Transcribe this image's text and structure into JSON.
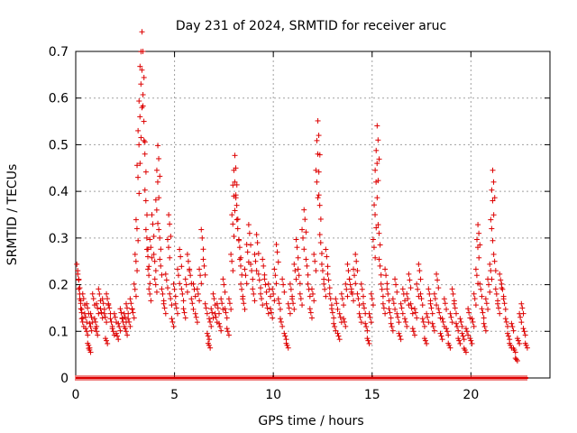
{
  "chart_data": {
    "type": "scatter",
    "title": "Day 231 of 2024, SRMTID for receiver aruc",
    "xlabel": "GPS time / hours",
    "ylabel": "SRMTID / TECUs",
    "xlim": [
      0,
      24
    ],
    "ylim": [
      0,
      0.7
    ],
    "xticks": [
      0,
      5,
      10,
      15,
      20
    ],
    "xtick_labels": [
      "0",
      "5",
      "10",
      "15",
      "20"
    ],
    "yticks": [
      0,
      0.1,
      0.2,
      0.3,
      0.4,
      0.5,
      0.6,
      0.7
    ],
    "ytick_labels": [
      "0",
      "0.1",
      "0.2",
      "0.3",
      "0.4",
      "0.5",
      "0.6",
      "0.7"
    ],
    "grid": true,
    "marker": "+",
    "color": "#dd0000",
    "series": [
      {
        "name": "SRMTID",
        "points": [
          [
            0.1,
            0.23
          ],
          [
            0.15,
            0.21
          ],
          [
            0.2,
            0.18
          ],
          [
            0.25,
            0.16
          ],
          [
            0.3,
            0.14
          ],
          [
            0.35,
            0.12
          ],
          [
            0.4,
            0.17
          ],
          [
            0.5,
            0.13
          ],
          [
            0.55,
            0.1
          ],
          [
            0.6,
            0.15
          ],
          [
            0.65,
            0.07
          ],
          [
            0.7,
            0.06
          ],
          [
            0.75,
            0.11
          ],
          [
            0.8,
            0.13
          ],
          [
            0.9,
            0.17
          ],
          [
            1.0,
            0.12
          ],
          [
            1.05,
            0.1
          ],
          [
            1.1,
            0.15
          ],
          [
            1.2,
            0.18
          ],
          [
            1.3,
            0.14
          ],
          [
            1.4,
            0.16
          ],
          [
            1.5,
            0.13
          ],
          [
            1.55,
            0.08
          ],
          [
            1.6,
            0.17
          ],
          [
            1.7,
            0.15
          ],
          [
            1.8,
            0.12
          ],
          [
            1.9,
            0.1
          ],
          [
            2.0,
            0.13
          ],
          [
            2.1,
            0.09
          ],
          [
            2.2,
            0.11
          ],
          [
            2.3,
            0.14
          ],
          [
            2.4,
            0.12
          ],
          [
            2.5,
            0.13
          ],
          [
            2.55,
            0.1
          ],
          [
            2.6,
            0.15
          ],
          [
            2.7,
            0.12
          ],
          [
            2.8,
            0.16
          ],
          [
            2.9,
            0.14
          ],
          [
            3.0,
            0.19
          ],
          [
            3.05,
            0.25
          ],
          [
            3.1,
            0.32
          ],
          [
            3.15,
            0.43
          ],
          [
            3.2,
            0.5
          ],
          [
            3.25,
            0.56
          ],
          [
            3.3,
            0.63
          ],
          [
            3.35,
            0.66
          ],
          [
            3.4,
            0.7
          ],
          [
            3.45,
            0.55
          ],
          [
            3.5,
            0.48
          ],
          [
            3.55,
            0.38
          ],
          [
            3.6,
            0.3
          ],
          [
            3.65,
            0.26
          ],
          [
            3.7,
            0.22
          ],
          [
            3.75,
            0.18
          ],
          [
            3.8,
            0.28
          ],
          [
            3.9,
            0.33
          ],
          [
            4.0,
            0.25
          ],
          [
            4.05,
            0.2
          ],
          [
            4.1,
            0.36
          ],
          [
            4.15,
            0.42
          ],
          [
            4.2,
            0.47
          ],
          [
            4.25,
            0.3
          ],
          [
            4.3,
            0.24
          ],
          [
            4.4,
            0.18
          ],
          [
            4.5,
            0.15
          ],
          [
            4.6,
            0.21
          ],
          [
            4.7,
            0.28
          ],
          [
            4.75,
            0.33
          ],
          [
            4.8,
            0.17
          ],
          [
            4.9,
            0.12
          ],
          [
            5.0,
            0.19
          ],
          [
            5.1,
            0.15
          ],
          [
            5.2,
            0.22
          ],
          [
            5.3,
            0.26
          ],
          [
            5.4,
            0.18
          ],
          [
            5.5,
            0.14
          ],
          [
            5.6,
            0.2
          ],
          [
            5.7,
            0.25
          ],
          [
            5.8,
            0.22
          ],
          [
            5.9,
            0.16
          ],
          [
            6.0,
            0.19
          ],
          [
            6.1,
            0.13
          ],
          [
            6.2,
            0.18
          ],
          [
            6.3,
            0.22
          ],
          [
            6.4,
            0.3
          ],
          [
            6.5,
            0.24
          ],
          [
            6.6,
            0.15
          ],
          [
            6.7,
            0.09
          ],
          [
            6.75,
            0.07
          ],
          [
            6.8,
            0.12
          ],
          [
            6.9,
            0.14
          ],
          [
            7.0,
            0.17
          ],
          [
            7.1,
            0.13
          ],
          [
            7.2,
            0.15
          ],
          [
            7.3,
            0.11
          ],
          [
            7.4,
            0.16
          ],
          [
            7.5,
            0.2
          ],
          [
            7.6,
            0.14
          ],
          [
            7.7,
            0.1
          ],
          [
            7.8,
            0.16
          ],
          [
            7.9,
            0.25
          ],
          [
            7.95,
            0.33
          ],
          [
            8.0,
            0.39
          ],
          [
            8.05,
            0.42
          ],
          [
            8.1,
            0.45
          ],
          [
            8.15,
            0.37
          ],
          [
            8.2,
            0.32
          ],
          [
            8.3,
            0.28
          ],
          [
            8.35,
            0.24
          ],
          [
            8.4,
            0.19
          ],
          [
            8.5,
            0.16
          ],
          [
            8.6,
            0.22
          ],
          [
            8.7,
            0.27
          ],
          [
            8.8,
            0.31
          ],
          [
            8.9,
            0.23
          ],
          [
            9.0,
            0.18
          ],
          [
            9.1,
            0.25
          ],
          [
            9.2,
            0.29
          ],
          [
            9.3,
            0.21
          ],
          [
            9.4,
            0.17
          ],
          [
            9.5,
            0.24
          ],
          [
            9.6,
            0.2
          ],
          [
            9.7,
            0.15
          ],
          [
            9.8,
            0.19
          ],
          [
            9.9,
            0.14
          ],
          [
            10.0,
            0.18
          ],
          [
            10.1,
            0.22
          ],
          [
            10.2,
            0.27
          ],
          [
            10.3,
            0.16
          ],
          [
            10.4,
            0.12
          ],
          [
            10.5,
            0.2
          ],
          [
            10.6,
            0.09
          ],
          [
            10.7,
            0.07
          ],
          [
            10.8,
            0.15
          ],
          [
            10.9,
            0.19
          ],
          [
            11.0,
            0.16
          ],
          [
            11.1,
            0.23
          ],
          [
            11.2,
            0.28
          ],
          [
            11.3,
            0.22
          ],
          [
            11.4,
            0.17
          ],
          [
            11.5,
            0.3
          ],
          [
            11.6,
            0.34
          ],
          [
            11.7,
            0.24
          ],
          [
            11.8,
            0.19
          ],
          [
            11.9,
            0.14
          ],
          [
            12.0,
            0.18
          ],
          [
            12.1,
            0.25
          ],
          [
            12.2,
            0.42
          ],
          [
            12.25,
            0.48
          ],
          [
            12.3,
            0.52
          ],
          [
            12.35,
            0.37
          ],
          [
            12.4,
            0.29
          ],
          [
            12.5,
            0.23
          ],
          [
            12.6,
            0.19
          ],
          [
            12.7,
            0.26
          ],
          [
            12.8,
            0.21
          ],
          [
            12.9,
            0.17
          ],
          [
            13.0,
            0.14
          ],
          [
            13.1,
            0.11
          ],
          [
            13.2,
            0.16
          ],
          [
            13.3,
            0.09
          ],
          [
            13.4,
            0.13
          ],
          [
            13.5,
            0.17
          ],
          [
            13.6,
            0.12
          ],
          [
            13.7,
            0.19
          ],
          [
            13.8,
            0.23
          ],
          [
            13.9,
            0.2
          ],
          [
            14.0,
            0.18
          ],
          [
            14.1,
            0.22
          ],
          [
            14.2,
            0.25
          ],
          [
            14.3,
            0.17
          ],
          [
            14.4,
            0.13
          ],
          [
            14.5,
            0.19
          ],
          [
            14.6,
            0.15
          ],
          [
            14.7,
            0.11
          ],
          [
            14.8,
            0.08
          ],
          [
            14.9,
            0.13
          ],
          [
            15.0,
            0.17
          ],
          [
            15.1,
            0.28
          ],
          [
            15.15,
            0.35
          ],
          [
            15.2,
            0.42
          ],
          [
            15.25,
            0.46
          ],
          [
            15.3,
            0.51
          ],
          [
            15.35,
            0.31
          ],
          [
            15.4,
            0.24
          ],
          [
            15.5,
            0.19
          ],
          [
            15.6,
            0.15
          ],
          [
            15.7,
            0.22
          ],
          [
            15.8,
            0.18
          ],
          [
            15.9,
            0.14
          ],
          [
            16.0,
            0.11
          ],
          [
            16.1,
            0.16
          ],
          [
            16.2,
            0.2
          ],
          [
            16.3,
            0.13
          ],
          [
            16.4,
            0.09
          ],
          [
            16.5,
            0.15
          ],
          [
            16.6,
            0.18
          ],
          [
            16.7,
            0.12
          ],
          [
            16.8,
            0.17
          ],
          [
            16.9,
            0.21
          ],
          [
            17.0,
            0.15
          ],
          [
            17.1,
            0.1
          ],
          [
            17.2,
            0.14
          ],
          [
            17.3,
            0.19
          ],
          [
            17.4,
            0.23
          ],
          [
            17.5,
            0.17
          ],
          [
            17.6,
            0.12
          ],
          [
            17.7,
            0.08
          ],
          [
            17.8,
            0.13
          ],
          [
            17.9,
            0.18
          ],
          [
            18.0,
            0.15
          ],
          [
            18.1,
            0.11
          ],
          [
            18.2,
            0.17
          ],
          [
            18.3,
            0.21
          ],
          [
            18.4,
            0.14
          ],
          [
            18.5,
            0.09
          ],
          [
            18.6,
            0.12
          ],
          [
            18.7,
            0.16
          ],
          [
            18.8,
            0.1
          ],
          [
            18.9,
            0.07
          ],
          [
            19.0,
            0.13
          ],
          [
            19.1,
            0.18
          ],
          [
            19.2,
            0.15
          ],
          [
            19.3,
            0.11
          ],
          [
            19.4,
            0.08
          ],
          [
            19.5,
            0.12
          ],
          [
            19.6,
            0.09
          ],
          [
            19.7,
            0.06
          ],
          [
            19.8,
            0.1
          ],
          [
            19.9,
            0.14
          ],
          [
            20.0,
            0.08
          ],
          [
            20.1,
            0.12
          ],
          [
            20.2,
            0.17
          ],
          [
            20.3,
            0.22
          ],
          [
            20.35,
            0.28
          ],
          [
            20.4,
            0.31
          ],
          [
            20.5,
            0.19
          ],
          [
            20.6,
            0.14
          ],
          [
            20.7,
            0.11
          ],
          [
            20.8,
            0.16
          ],
          [
            20.9,
            0.2
          ],
          [
            21.0,
            0.23
          ],
          [
            21.05,
            0.32
          ],
          [
            21.1,
            0.38
          ],
          [
            21.15,
            0.42
          ],
          [
            21.2,
            0.25
          ],
          [
            21.3,
            0.18
          ],
          [
            21.4,
            0.15
          ],
          [
            21.5,
            0.21
          ],
          [
            21.6,
            0.19
          ],
          [
            21.7,
            0.16
          ],
          [
            21.8,
            0.12
          ],
          [
            21.9,
            0.09
          ],
          [
            22.0,
            0.07
          ],
          [
            22.1,
            0.11
          ],
          [
            22.2,
            0.06
          ],
          [
            22.3,
            0.04
          ],
          [
            22.4,
            0.08
          ],
          [
            22.5,
            0.13
          ],
          [
            22.6,
            0.15
          ],
          [
            22.7,
            0.1
          ],
          [
            22.8,
            0.07
          ]
        ],
        "zero_band": [
          0.0,
          22.9
        ]
      }
    ]
  }
}
